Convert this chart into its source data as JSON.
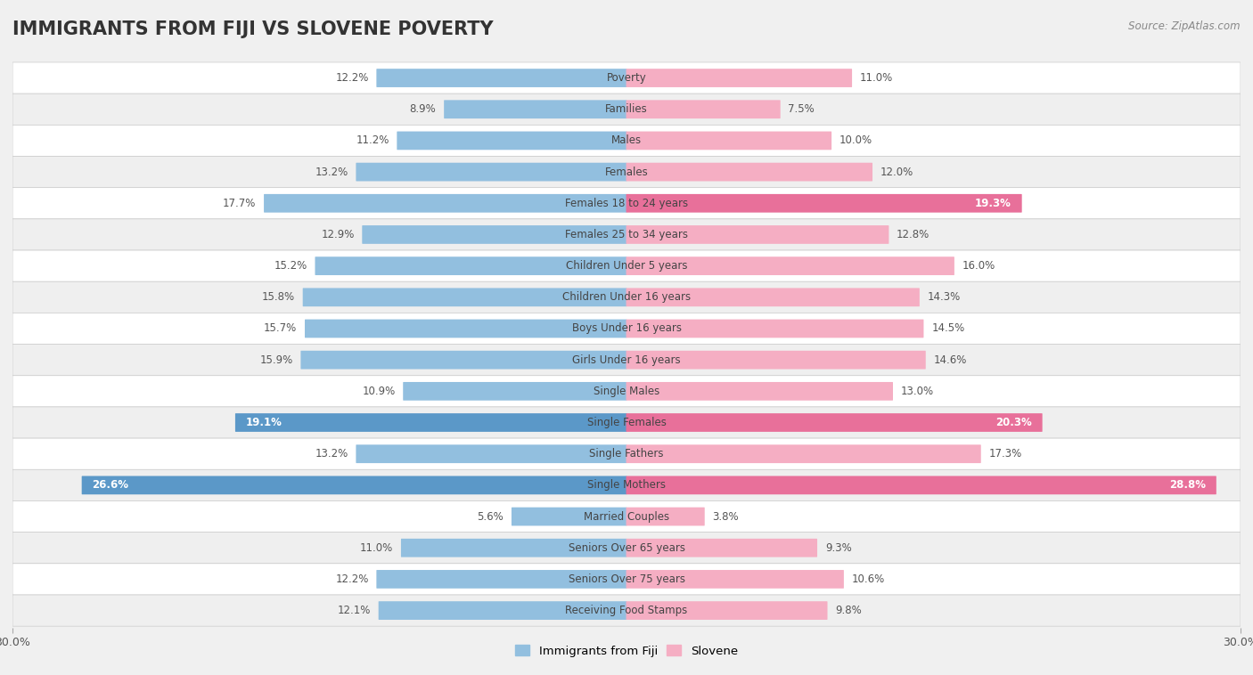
{
  "title": "IMMIGRANTS FROM FIJI VS SLOVENE POVERTY",
  "source": "Source: ZipAtlas.com",
  "categories": [
    "Poverty",
    "Families",
    "Males",
    "Females",
    "Females 18 to 24 years",
    "Females 25 to 34 years",
    "Children Under 5 years",
    "Children Under 16 years",
    "Boys Under 16 years",
    "Girls Under 16 years",
    "Single Males",
    "Single Females",
    "Single Fathers",
    "Single Mothers",
    "Married Couples",
    "Seniors Over 65 years",
    "Seniors Over 75 years",
    "Receiving Food Stamps"
  ],
  "fiji_values": [
    12.2,
    8.9,
    11.2,
    13.2,
    17.7,
    12.9,
    15.2,
    15.8,
    15.7,
    15.9,
    10.9,
    19.1,
    13.2,
    26.6,
    5.6,
    11.0,
    12.2,
    12.1
  ],
  "slovene_values": [
    11.0,
    7.5,
    10.0,
    12.0,
    19.3,
    12.8,
    16.0,
    14.3,
    14.5,
    14.6,
    13.0,
    20.3,
    17.3,
    28.8,
    3.8,
    9.3,
    10.6,
    9.8
  ],
  "fiji_color": "#92bfdf",
  "slovene_color": "#f5aec3",
  "fiji_highlight_color": "#5b98c8",
  "slovene_highlight_color": "#e8709a",
  "row_color_even": "#ffffff",
  "row_color_odd": "#efefef",
  "background_color": "#f0f0f0",
  "axis_max": 30.0,
  "legend_fiji": "Immigrants from Fiji",
  "legend_slovene": "Slovene",
  "title_fontsize": 15,
  "label_fontsize": 8.5,
  "value_fontsize": 8.5,
  "highlight_fiji_indices": [
    11,
    13
  ],
  "highlight_slovene_indices": [
    4,
    11,
    13
  ]
}
